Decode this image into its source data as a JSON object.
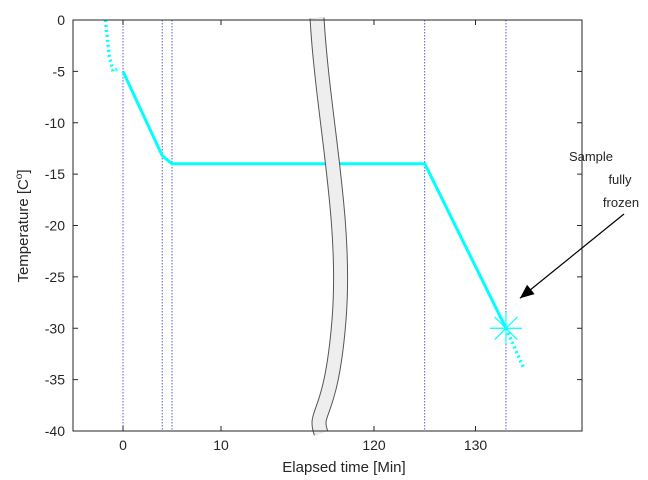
{
  "chart_data": {
    "type": "line",
    "title": "",
    "xlabel": "Elapsed time [Min]",
    "ylabel": "Temperature [C",
    "ylabel_superscript": "o",
    "ylabel_close": "]",
    "ylim": [
      -40,
      0
    ],
    "yticks": [
      0,
      -5,
      -10,
      -15,
      -20,
      -25,
      -30,
      -35,
      -40
    ],
    "xticks": [
      {
        "value": 0,
        "label": "0"
      },
      {
        "value": 10,
        "label": "10"
      },
      {
        "value": 120,
        "label": "120"
      },
      {
        "value": 130,
        "label": "130"
      }
    ],
    "axis_break": {
      "after": 10,
      "before": 120
    },
    "grid": false,
    "series": [
      {
        "style": "solid",
        "color": "#00ffff",
        "points": [
          [
            0,
            -5
          ],
          [
            4,
            -13.2
          ],
          [
            5,
            -14
          ],
          [
            10,
            -14
          ],
          [
            120,
            -14
          ],
          [
            125,
            -14
          ],
          [
            133,
            -30
          ]
        ]
      },
      {
        "style": "dotted",
        "color": "#00ffff",
        "points": [
          [
            -1.8,
            0
          ],
          [
            -1.4,
            -3.5
          ],
          [
            -1.0,
            -5
          ],
          [
            -0.6,
            -4.8
          ]
        ]
      },
      {
        "style": "dotted",
        "color": "#00ffff",
        "points": [
          [
            133,
            -30
          ],
          [
            134.8,
            -34
          ]
        ]
      }
    ],
    "vertical_lines": [
      0,
      4,
      5,
      125,
      133
    ],
    "vertical_line_color": "#3333cc",
    "marker": {
      "x": 133,
      "y": -30,
      "symbol": "asterisk",
      "color": "#00ffff"
    },
    "annotation": {
      "lines": [
        "Sample",
        "fully",
        "frozen"
      ],
      "target": [
        133,
        -30
      ]
    }
  }
}
